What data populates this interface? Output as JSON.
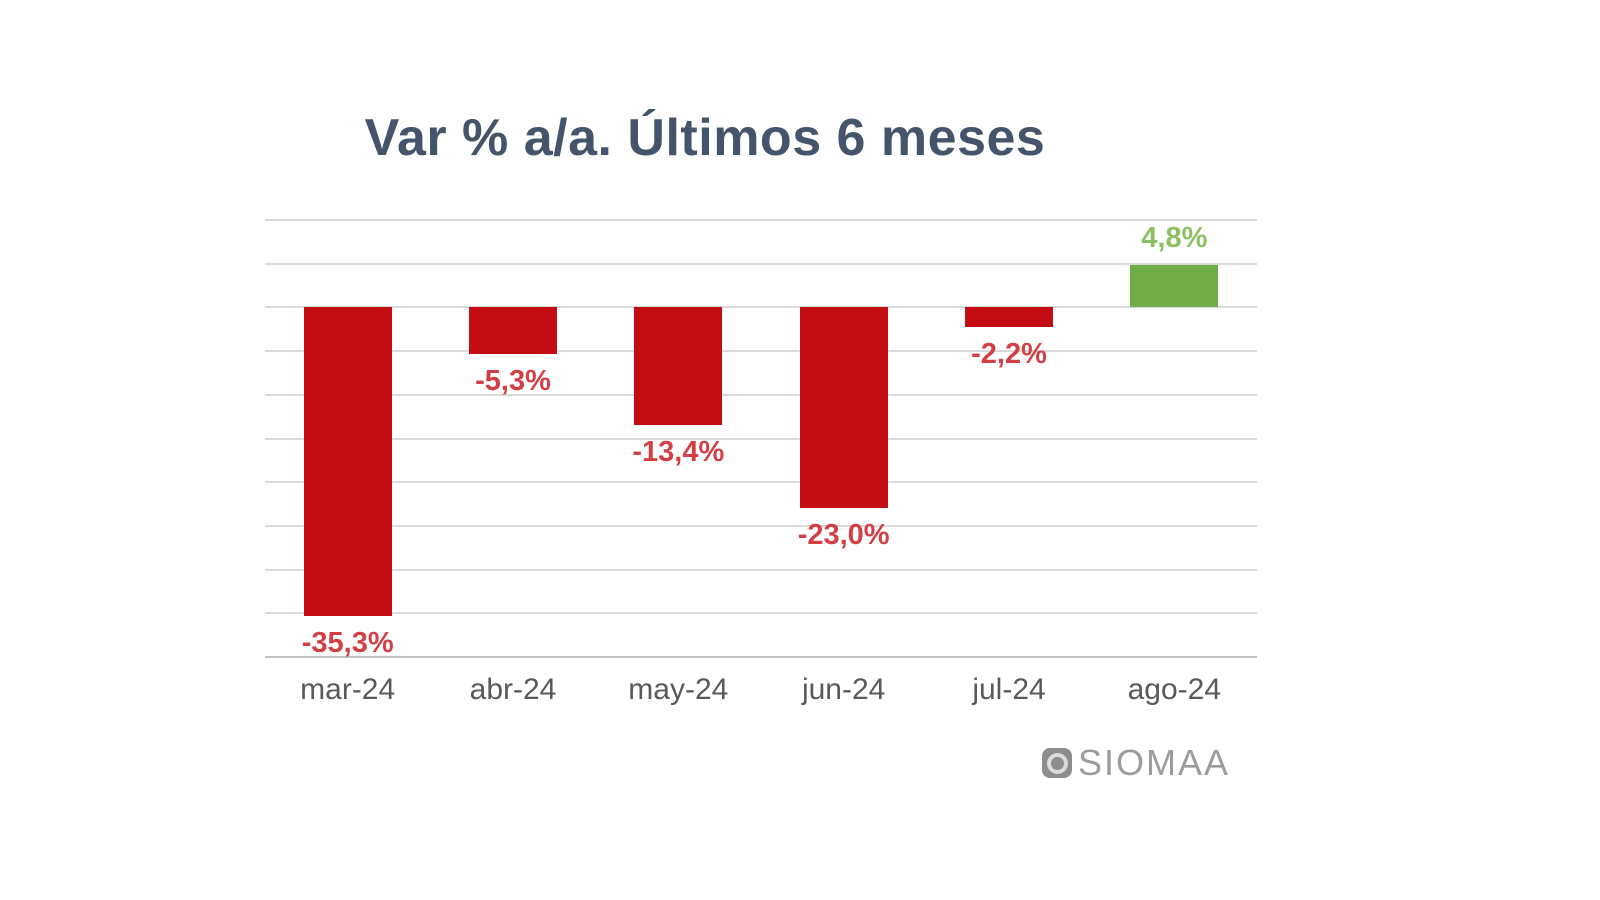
{
  "page": {
    "background": "#ffffff"
  },
  "chart_data": {
    "type": "bar",
    "title": "Var % a/a. Últimos 6 meses",
    "categories": [
      "mar-24",
      "abr-24",
      "may-24",
      "jun-24",
      "jul-24",
      "ago-24"
    ],
    "values": [
      -35.3,
      -5.3,
      -13.4,
      -23.0,
      -2.2,
      4.8
    ],
    "value_labels": [
      "-35,3%",
      "-5,3%",
      "-13,4%",
      "-23,0%",
      "-2,2%",
      "4,8%"
    ],
    "xlabel": "",
    "ylabel": "",
    "ylim": [
      -40,
      10
    ],
    "gridline_step": 5,
    "grid": true,
    "legend": false,
    "y_axis_labels_visible": false,
    "colors": {
      "bar_negative": "#c30d12",
      "bar_positive": "#70ad47",
      "label_negative": "#d2404 5",
      "label_negative_fixed": "#d24045",
      "label_positive": "#8cc063",
      "gridline": "#d9d9d9",
      "axis_line": "#c2c2c2",
      "tick_label": "#595959",
      "title": "#44546a"
    }
  },
  "branding": {
    "logo_text": "SIOMAA",
    "logo_text_color": "#9c9c9c",
    "logo_icon_color": "#8d8d8d"
  }
}
